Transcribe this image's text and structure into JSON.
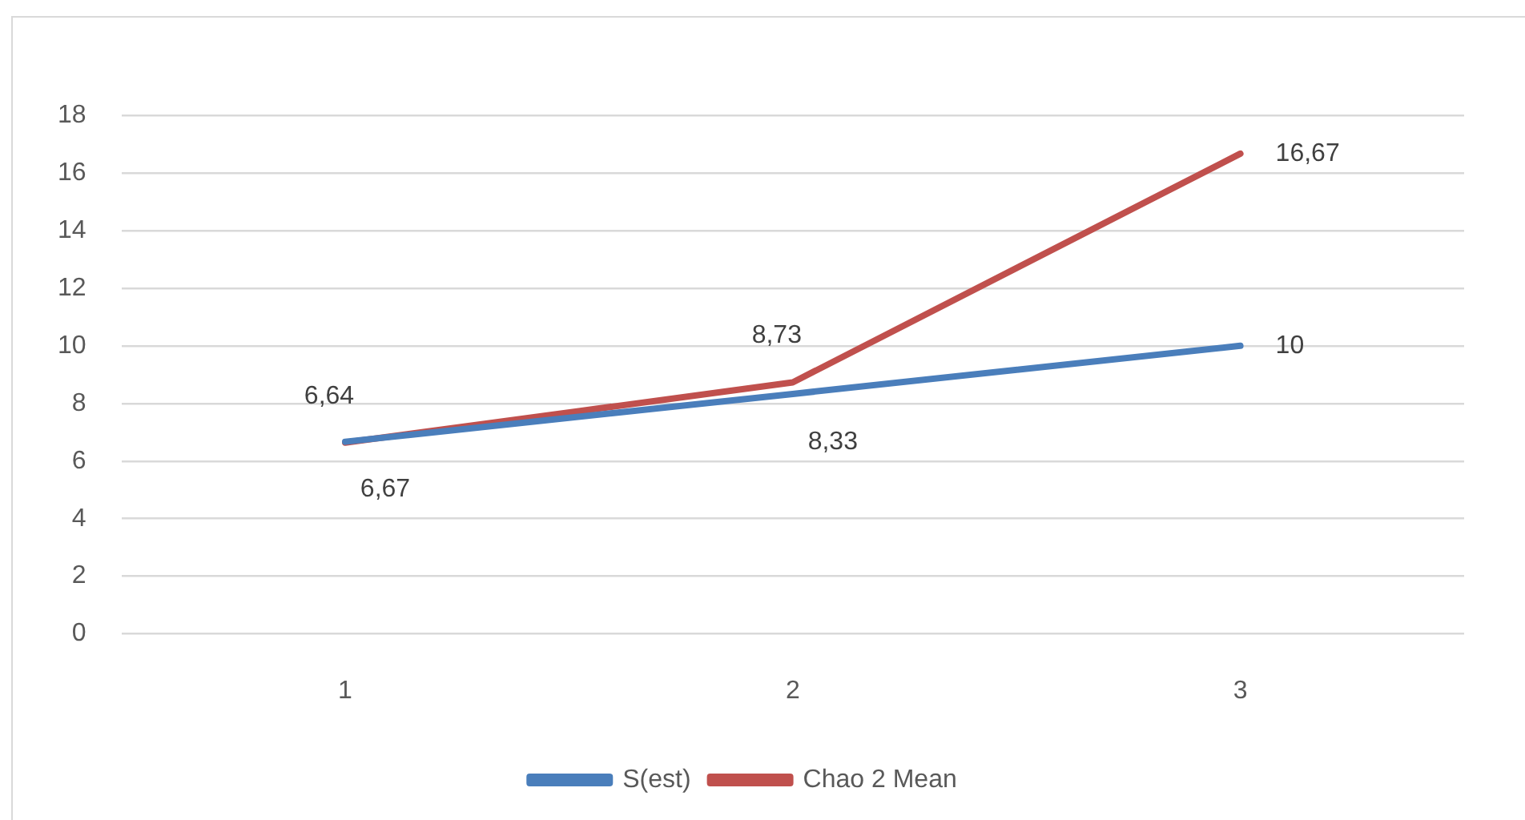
{
  "chart_data": {
    "type": "line",
    "categories": [
      "1",
      "2",
      "3"
    ],
    "series": [
      {
        "name": "S(est)",
        "color": "#4a7ebb",
        "values": [
          6.67,
          8.33,
          10
        ],
        "value_labels": [
          "6,67",
          "8,33",
          "10"
        ]
      },
      {
        "name": "Chao 2 Mean",
        "color": "#c0504d",
        "values": [
          6.64,
          8.73,
          16.67
        ],
        "value_labels": [
          "6,64",
          "8,73",
          "16,67"
        ]
      }
    ],
    "ylim": [
      0,
      18
    ],
    "yticks": [
      0,
      2,
      4,
      6,
      8,
      10,
      12,
      14,
      16,
      18
    ],
    "grid": "y",
    "legend": "bottom",
    "marker": "none",
    "line_style": "solid"
  }
}
